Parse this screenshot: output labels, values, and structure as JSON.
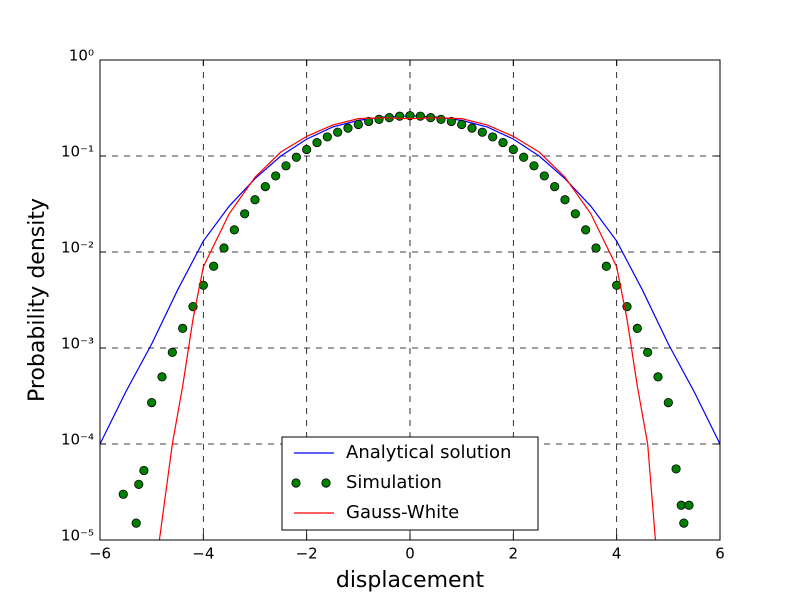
{
  "chart_data": {
    "type": "line",
    "xlabel": "displacement",
    "ylabel": "Probability density",
    "xlim": [
      -6,
      6
    ],
    "ylim": [
      1e-05,
      1
    ],
    "yscale": "log",
    "grid": true,
    "legend": "lower center",
    "xticks": [
      {
        "value": -6,
        "label": "−6"
      },
      {
        "value": -4,
        "label": "−4"
      },
      {
        "value": -2,
        "label": "−2"
      },
      0,
      2,
      4,
      6
    ],
    "yticks": [
      {
        "value": 1e-05,
        "label": "10⁻⁵"
      },
      {
        "value": 0.0001,
        "label": "10⁻⁴"
      },
      {
        "value": 0.001,
        "label": "10⁻³"
      },
      {
        "value": 0.01,
        "label": "10⁻²"
      },
      {
        "value": 0.1,
        "label": "10⁻¹"
      },
      {
        "value": 1,
        "label": "10⁰"
      }
    ],
    "series": [
      {
        "name": "Analytical solution",
        "style": "line",
        "color": "#0000ff",
        "x": [
          -6,
          -5.5,
          -5,
          -4.5,
          -4,
          -3.5,
          -3,
          -2.5,
          -2,
          -1.5,
          -1,
          -0.5,
          0,
          0.5,
          1,
          1.5,
          2,
          2.5,
          3,
          3.5,
          4,
          4.5,
          5,
          5.5,
          6
        ],
        "values": [
          0.0001,
          0.00035,
          0.0011,
          0.004,
          0.013,
          0.03,
          0.058,
          0.1,
          0.15,
          0.2,
          0.235,
          0.255,
          0.262,
          0.255,
          0.235,
          0.2,
          0.15,
          0.1,
          0.058,
          0.03,
          0.013,
          0.004,
          0.0011,
          0.00035,
          0.0001
        ]
      },
      {
        "name": "Simulation",
        "style": "marker",
        "color": "#008000",
        "x": [
          -5.55,
          -5.3,
          -5.25,
          -5.15,
          -5.0,
          -4.8,
          -4.6,
          -4.4,
          -4.2,
          -4.0,
          -3.8,
          -3.6,
          -3.4,
          -3.2,
          -3.0,
          -2.8,
          -2.6,
          -2.4,
          -2.2,
          -2.0,
          -1.8,
          -1.6,
          -1.4,
          -1.2,
          -1.0,
          -0.8,
          -0.6,
          -0.4,
          -0.2,
          0,
          0.2,
          0.4,
          0.6,
          0.8,
          1.0,
          1.2,
          1.4,
          1.6,
          1.8,
          2.0,
          2.2,
          2.4,
          2.6,
          2.8,
          3.0,
          3.2,
          3.4,
          3.6,
          3.8,
          4.0,
          4.2,
          4.4,
          4.6,
          4.8,
          5.0,
          5.15,
          5.25,
          5.3,
          5.4
        ],
        "values": [
          3e-05,
          1.5e-05,
          3.8e-05,
          5.3e-05,
          0.00027,
          0.0005,
          0.0009,
          0.0016,
          0.0027,
          0.0045,
          0.0071,
          0.011,
          0.017,
          0.025,
          0.035,
          0.048,
          0.062,
          0.079,
          0.097,
          0.117,
          0.138,
          0.158,
          0.177,
          0.195,
          0.213,
          0.229,
          0.241,
          0.251,
          0.26,
          0.263,
          0.26,
          0.251,
          0.241,
          0.229,
          0.213,
          0.195,
          0.177,
          0.158,
          0.138,
          0.117,
          0.097,
          0.079,
          0.062,
          0.048,
          0.035,
          0.025,
          0.017,
          0.011,
          0.0071,
          0.0045,
          0.0027,
          0.0016,
          0.0009,
          0.0005,
          0.00027,
          5.5e-05,
          2.3e-05,
          1.5e-05,
          2.3e-05
        ]
      },
      {
        "name": "Gauss-White",
        "style": "line",
        "color": "#ff0000",
        "x": [
          -4.85,
          -4.6,
          -4.4,
          -4.2,
          -4,
          -3.5,
          -3,
          -2.5,
          -2,
          -1.5,
          -1,
          -0.5,
          0,
          0.5,
          1,
          1.5,
          2,
          2.5,
          3,
          3.5,
          4,
          4.2,
          4.4,
          4.6,
          4.75
        ],
        "values": [
          1e-05,
          0.0001,
          0.0004,
          0.002,
          0.007,
          0.025,
          0.06,
          0.11,
          0.16,
          0.21,
          0.245,
          0.25,
          0.245,
          0.25,
          0.245,
          0.21,
          0.16,
          0.11,
          0.06,
          0.025,
          0.007,
          0.002,
          0.0004,
          0.0001,
          1e-05
        ]
      }
    ]
  }
}
